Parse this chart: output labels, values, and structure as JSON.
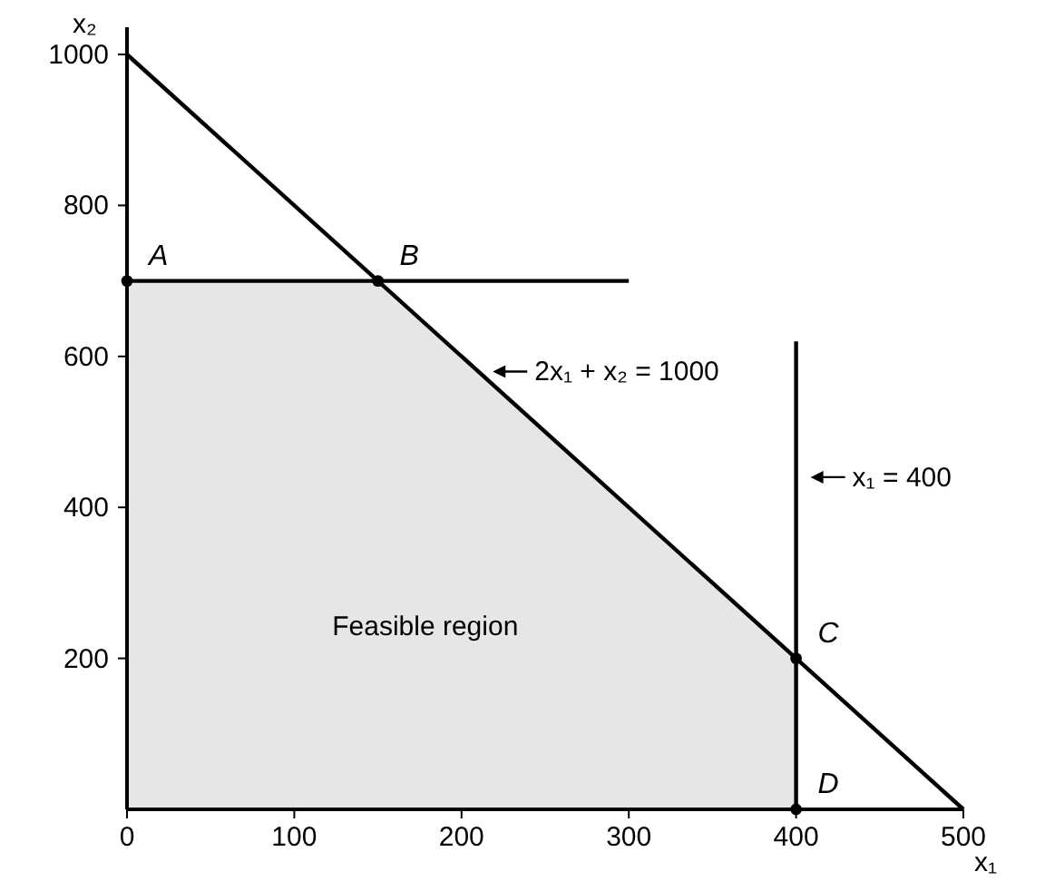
{
  "chart_data": {
    "type": "line",
    "xlabel": "x₁",
    "ylabel": "x₂",
    "xlim": [
      0,
      500
    ],
    "ylim": [
      0,
      1000
    ],
    "xticks": [
      0,
      100,
      200,
      300,
      400,
      500
    ],
    "yticks": [
      200,
      400,
      600,
      800,
      1000
    ],
    "grid": false,
    "series": [
      {
        "type": "area",
        "color": "#e6e6e8",
        "x": [
          0,
          150,
          400
        ],
        "values": [
          700,
          700,
          200
        ]
      },
      {
        "type": "line",
        "color": "#000000",
        "x": [
          0,
          500
        ],
        "values": [
          1000,
          0
        ]
      },
      {
        "type": "line",
        "color": "#000000",
        "x": [
          0,
          300
        ],
        "values": [
          700,
          700
        ]
      },
      {
        "type": "line",
        "color": "#000000",
        "x": [
          400,
          400
        ],
        "values": [
          0,
          620
        ]
      },
      {
        "type": "scatter",
        "marker": "circle",
        "color": "#000000",
        "x": [
          0,
          150,
          400,
          400
        ],
        "values": [
          700,
          700,
          200,
          0
        ]
      }
    ],
    "annotations": [
      {
        "text": "A",
        "x": 0,
        "y": 700
      },
      {
        "text": "B",
        "x": 150,
        "y": 700
      },
      {
        "text": "C",
        "x": 400,
        "y": 200
      },
      {
        "text": "D",
        "x": 400,
        "y": 0
      },
      "Feasible region",
      {
        "text": "2x₁ + x₂ = 1000",
        "x": 210,
        "y": 580
      },
      {
        "text": "x₁ = 400",
        "x": 400,
        "y": 440
      }
    ]
  }
}
